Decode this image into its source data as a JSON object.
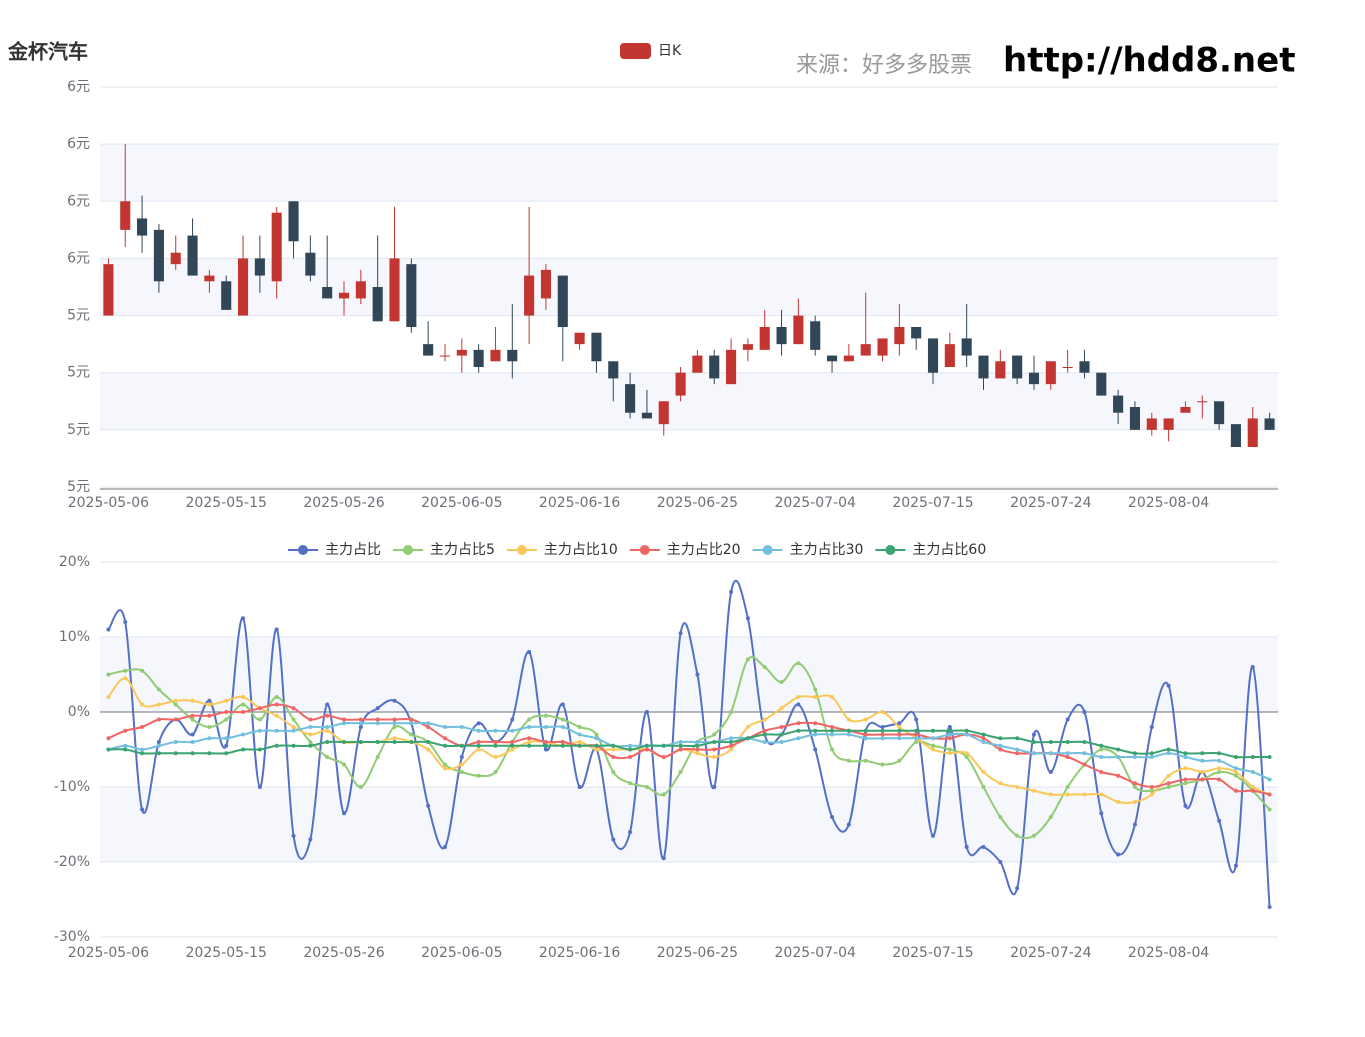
{
  "title": "金杯汽车",
  "source": "来源：好多多股票",
  "site": "http://hdd8.net",
  "chart_data": [
    {
      "type": "candlestick",
      "split_area": true,
      "grid": true,
      "categories": [
        "2025-05-06",
        null,
        null,
        null,
        null,
        null,
        null,
        "2025-05-15",
        null,
        null,
        null,
        null,
        null,
        null,
        "2025-05-26",
        null,
        null,
        null,
        null,
        null,
        null,
        "2025-06-05",
        null,
        null,
        null,
        null,
        null,
        null,
        "2025-06-16",
        null,
        null,
        null,
        null,
        null,
        null,
        "2025-06-25",
        null,
        null,
        null,
        null,
        null,
        null,
        "2025-07-04",
        null,
        null,
        null,
        null,
        null,
        null,
        "2025-07-15",
        null,
        null,
        null,
        null,
        null,
        null,
        "2025-07-24",
        null,
        null,
        null,
        null,
        null,
        null,
        "2025-08-04",
        null,
        null,
        null,
        null,
        null,
        null
      ],
      "ylim": [
        5.1,
        5.8
      ],
      "yticks": [
        {
          "value": 5.1,
          "label": "5元"
        },
        {
          "value": 5.2,
          "label": "5元"
        },
        {
          "value": 5.3,
          "label": "5元"
        },
        {
          "value": 5.4,
          "label": "5元"
        },
        {
          "value": 5.5,
          "label": "6元"
        },
        {
          "value": 5.6,
          "label": "6元"
        },
        {
          "value": 5.7,
          "label": "6元"
        },
        {
          "value": 5.8,
          "label": "6元"
        }
      ],
      "series": [
        {
          "name": "日K",
          "color": "#c23531",
          "up_color": "#c23531",
          "down_color": "#314656",
          "open": [
            5.4,
            5.55,
            5.57,
            5.55,
            5.49,
            5.54,
            5.46,
            5.46,
            5.4,
            5.5,
            5.46,
            5.6,
            5.51,
            5.45,
            5.43,
            5.43,
            5.45,
            5.39,
            5.49,
            5.35,
            5.33,
            5.33,
            5.34,
            5.32,
            5.34,
            5.4,
            5.43,
            5.47,
            5.35,
            5.37,
            5.32,
            5.28,
            5.23,
            5.21,
            5.26,
            5.3,
            5.33,
            5.28,
            5.34,
            5.34,
            5.38,
            5.35,
            5.39,
            5.33,
            5.32,
            5.33,
            5.33,
            5.35,
            5.38,
            5.36,
            5.31,
            5.36,
            5.33,
            5.29,
            5.33,
            5.3,
            5.28,
            5.31,
            5.32,
            5.3,
            5.26,
            5.24,
            5.2,
            5.2,
            5.23,
            5.25,
            5.25,
            5.21,
            5.17,
            5.22
          ],
          "close": [
            5.49,
            5.6,
            5.54,
            5.46,
            5.51,
            5.47,
            5.47,
            5.41,
            5.5,
            5.47,
            5.58,
            5.53,
            5.47,
            5.43,
            5.44,
            5.46,
            5.39,
            5.5,
            5.38,
            5.33,
            5.33,
            5.34,
            5.31,
            5.34,
            5.32,
            5.47,
            5.48,
            5.38,
            5.37,
            5.32,
            5.29,
            5.23,
            5.22,
            5.25,
            5.3,
            5.33,
            5.29,
            5.34,
            5.35,
            5.38,
            5.35,
            5.4,
            5.34,
            5.32,
            5.33,
            5.35,
            5.36,
            5.38,
            5.36,
            5.3,
            5.35,
            5.33,
            5.29,
            5.32,
            5.29,
            5.28,
            5.32,
            5.31,
            5.3,
            5.26,
            5.23,
            5.2,
            5.22,
            5.22,
            5.24,
            5.25,
            5.21,
            5.17,
            5.22,
            5.2
          ],
          "low": [
            5.4,
            5.52,
            5.51,
            5.44,
            5.48,
            5.47,
            5.44,
            5.41,
            5.4,
            5.44,
            5.43,
            5.5,
            5.46,
            5.43,
            5.4,
            5.42,
            5.39,
            5.39,
            5.37,
            5.33,
            5.32,
            5.3,
            5.3,
            5.32,
            5.29,
            5.35,
            5.41,
            5.32,
            5.34,
            5.3,
            5.25,
            5.22,
            5.22,
            5.19,
            5.25,
            5.3,
            5.28,
            5.28,
            5.32,
            5.34,
            5.33,
            5.35,
            5.33,
            5.3,
            5.32,
            5.33,
            5.32,
            5.33,
            5.34,
            5.28,
            5.31,
            5.31,
            5.27,
            5.29,
            5.28,
            5.27,
            5.27,
            5.3,
            5.29,
            5.26,
            5.21,
            5.2,
            5.19,
            5.18,
            5.23,
            5.22,
            5.2,
            5.17,
            5.17,
            5.2
          ],
          "high": [
            5.5,
            5.7,
            5.61,
            5.56,
            5.54,
            5.57,
            5.48,
            5.47,
            5.54,
            5.54,
            5.59,
            5.6,
            5.54,
            5.54,
            5.46,
            5.48,
            5.54,
            5.59,
            5.5,
            5.39,
            5.35,
            5.36,
            5.35,
            5.38,
            5.42,
            5.59,
            5.49,
            5.47,
            5.37,
            5.37,
            5.32,
            5.3,
            5.27,
            5.25,
            5.31,
            5.34,
            5.34,
            5.36,
            5.36,
            5.41,
            5.41,
            5.43,
            5.4,
            5.33,
            5.35,
            5.44,
            5.36,
            5.42,
            5.38,
            5.36,
            5.37,
            5.42,
            5.33,
            5.34,
            5.33,
            5.33,
            5.32,
            5.34,
            5.34,
            5.3,
            5.27,
            5.25,
            5.23,
            5.22,
            5.25,
            5.26,
            5.25,
            5.21,
            5.24,
            5.23
          ]
        }
      ]
    },
    {
      "type": "line",
      "split_area": true,
      "grid": true,
      "smooth": true,
      "categories": [
        "2025-05-06",
        null,
        null,
        null,
        null,
        null,
        null,
        "2025-05-15",
        null,
        null,
        null,
        null,
        null,
        null,
        "2025-05-26",
        null,
        null,
        null,
        null,
        null,
        null,
        "2025-06-05",
        null,
        null,
        null,
        null,
        null,
        null,
        "2025-06-16",
        null,
        null,
        null,
        null,
        null,
        null,
        "2025-06-25",
        null,
        null,
        null,
        null,
        null,
        null,
        "2025-07-04",
        null,
        null,
        null,
        null,
        null,
        null,
        "2025-07-15",
        null,
        null,
        null,
        null,
        null,
        null,
        "2025-07-24",
        null,
        null,
        null,
        null,
        null,
        null,
        "2025-08-04",
        null,
        null,
        null,
        null,
        null,
        null
      ],
      "ylim": [
        -30,
        20
      ],
      "yticks": [
        {
          "value": -30,
          "label": "-30%"
        },
        {
          "value": -20,
          "label": "-20%"
        },
        {
          "value": -10,
          "label": "-10%"
        },
        {
          "value": 0,
          "label": "0%"
        },
        {
          "value": 10,
          "label": "10%"
        },
        {
          "value": 20,
          "label": "20%"
        }
      ],
      "series": [
        {
          "name": "主力占比",
          "color": "#5470c6",
          "values": [
            11,
            12,
            -13,
            -4,
            -1,
            -3,
            1.5,
            -4.5,
            12.5,
            -10,
            11,
            -16.5,
            -17,
            1,
            -13.5,
            -2,
            0.5,
            1.5,
            -1.5,
            -12.5,
            -18,
            -6,
            -1.5,
            -4,
            -1,
            8,
            -5,
            1,
            -10,
            -5,
            -17,
            -16,
            0,
            -19.5,
            10.5,
            5,
            -10,
            16,
            12.5,
            -3,
            -3,
            1,
            -5,
            -14,
            -15,
            -2.5,
            -2,
            -1.5,
            -1,
            -16.5,
            -2,
            -18,
            -18,
            -20,
            -23.5,
            -3,
            -8,
            -1,
            0,
            -13.5,
            -19,
            -15,
            -2,
            3.5,
            -12.5,
            -8,
            -14.5,
            -20.5,
            6,
            -26
          ]
        },
        {
          "name": "主力占比5",
          "color": "#91cc75",
          "values": [
            5,
            5.5,
            5.5,
            3,
            1,
            -1,
            -2,
            -1,
            1,
            -1,
            2,
            -1,
            -4,
            -6,
            -7,
            -10,
            -6,
            -2,
            -3,
            -4,
            -7,
            -8,
            -8.5,
            -8,
            -4,
            -1,
            -0.5,
            -1,
            -2,
            -3,
            -8,
            -9.5,
            -10,
            -11,
            -8,
            -4,
            -3,
            0,
            7,
            6,
            4,
            6.5,
            3,
            -5,
            -6.5,
            -6.5,
            -7,
            -6.5,
            -4,
            -4.5,
            -5,
            -6,
            -10,
            -14,
            -16.5,
            -16.5,
            -14,
            -10,
            -7,
            -5,
            -6,
            -10,
            -10.5,
            -10,
            -9.5,
            -9,
            -8,
            -8.5,
            -10.5,
            -13
          ]
        },
        {
          "name": "主力占比10",
          "color": "#fac858",
          "values": [
            2,
            4.5,
            1,
            1,
            1.5,
            1.5,
            1,
            1.5,
            2,
            0.5,
            -0.5,
            -2,
            -3,
            -2.5,
            -4,
            -4,
            -4,
            -3.5,
            -4,
            -5,
            -7.5,
            -7,
            -5,
            -6,
            -5,
            -4,
            -4,
            -4.5,
            -4,
            -5,
            -5,
            -5,
            -5,
            -6,
            -5,
            -5.5,
            -6,
            -5,
            -2,
            -1,
            0.5,
            2,
            2,
            2,
            -1,
            -1,
            0,
            -2,
            -3.5,
            -5,
            -5.5,
            -5.5,
            -8,
            -9.5,
            -10,
            -10.5,
            -11,
            -11,
            -11,
            -11,
            -12,
            -12,
            -11,
            -8.5,
            -7.5,
            -8,
            -7.5,
            -8,
            -10,
            -11
          ]
        },
        {
          "name": "主力占比20",
          "color": "#ee6666",
          "values": [
            -3.5,
            -2.5,
            -2,
            -1,
            -1,
            -0.5,
            -0.5,
            0,
            0,
            0.5,
            1,
            0.5,
            -1,
            -0.5,
            -1,
            -1,
            -1,
            -1,
            -1,
            -2,
            -3.5,
            -4.5,
            -4,
            -4,
            -4,
            -3.5,
            -4,
            -4,
            -4.5,
            -4.5,
            -6,
            -6,
            -5,
            -6,
            -5,
            -5,
            -5,
            -4.5,
            -3.5,
            -2.5,
            -2,
            -1.5,
            -1.5,
            -2,
            -2.5,
            -3,
            -3,
            -3,
            -3,
            -3.5,
            -3.5,
            -3,
            -3.5,
            -5,
            -5.5,
            -5.5,
            -5.5,
            -6,
            -7,
            -8,
            -8.5,
            -9.5,
            -10,
            -9.5,
            -9,
            -9,
            -9,
            -10.5,
            -10.5,
            -11
          ]
        },
        {
          "name": "主力占比30",
          "color": "#73c0de",
          "values": [
            -5,
            -4.5,
            -5,
            -4.5,
            -4,
            -4,
            -3.5,
            -3.5,
            -3,
            -2.5,
            -2.5,
            -2.5,
            -2,
            -2,
            -1.5,
            -1.5,
            -1.5,
            -1.5,
            -1.5,
            -1.5,
            -2,
            -2,
            -2.5,
            -2.5,
            -2.5,
            -2,
            -2,
            -2,
            -3,
            -3.5,
            -4.5,
            -4.5,
            -4.5,
            -4.5,
            -4,
            -4,
            -4,
            -3.5,
            -3.5,
            -4,
            -4,
            -3.5,
            -3,
            -3,
            -3,
            -3.5,
            -3.5,
            -3.5,
            -3.5,
            -3.5,
            -3,
            -3,
            -4,
            -4.5,
            -5,
            -5.5,
            -5.5,
            -5.5,
            -5.5,
            -6,
            -6,
            -6,
            -6,
            -5.5,
            -6,
            -6.5,
            -6.5,
            -7.5,
            -8,
            -9
          ]
        },
        {
          "name": "主力占比60",
          "color": "#3ba272",
          "values": [
            -5,
            -5,
            -5.5,
            -5.5,
            -5.5,
            -5.5,
            -5.5,
            -5.5,
            -5,
            -5,
            -4.5,
            -4.5,
            -4.5,
            -4,
            -4,
            -4,
            -4,
            -4,
            -4,
            -4,
            -4.5,
            -4.5,
            -4.5,
            -4.5,
            -4.5,
            -4.5,
            -4.5,
            -4.5,
            -4.5,
            -4.5,
            -4.5,
            -5,
            -4.5,
            -4.5,
            -4.5,
            -4.5,
            -4,
            -4,
            -3.5,
            -3,
            -3,
            -2.5,
            -2.5,
            -2.5,
            -2.5,
            -2.5,
            -2.5,
            -2.5,
            -2.5,
            -2.5,
            -2.5,
            -2.5,
            -3,
            -3.5,
            -3.5,
            -4,
            -4,
            -4,
            -4,
            -4.5,
            -5,
            -5.5,
            -5.5,
            -5,
            -5.5,
            -5.5,
            -5.5,
            -6,
            -6,
            -6
          ]
        }
      ]
    }
  ]
}
